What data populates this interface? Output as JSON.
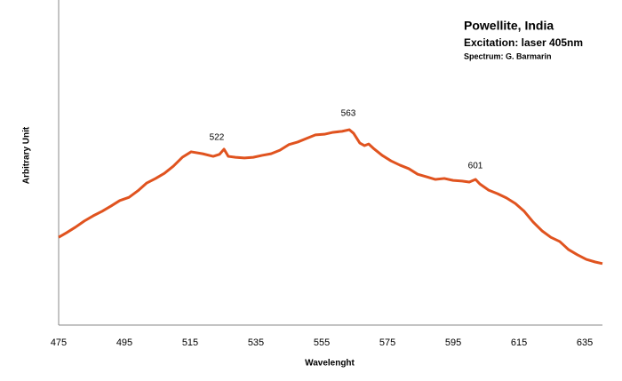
{
  "chart_data": {
    "type": "line",
    "title": "Powellite, India",
    "subtitle": "Excitation: laser 405nm",
    "credit": "Spectrum: G. Barmarin",
    "xlabel": "Wavelenght",
    "ylabel": "Arbitrary Unit",
    "annotations": [
      "522",
      "563",
      "601"
    ],
    "xlim": [
      475,
      640.4
    ],
    "ylim": [
      0,
      100
    ],
    "xticks": [
      475,
      495,
      515,
      535,
      555,
      575,
      595,
      615,
      635
    ],
    "x": [
      475,
      477.4,
      480.1,
      482.8,
      485.5,
      488.2,
      490.9,
      493.6,
      496.4,
      499.1,
      501.8,
      504.5,
      507.2,
      509.9,
      512.6,
      515.3,
      518.8,
      522.0,
      523.9,
      525.3,
      526.6,
      528.8,
      531.5,
      534.2,
      536.9,
      539.6,
      542.3,
      545.0,
      547.7,
      550.4,
      553.1,
      555.8,
      558.5,
      561.2,
      563.4,
      564.7,
      566.6,
      568.0,
      569.3,
      570.7,
      573.4,
      576.1,
      578.8,
      581.5,
      584.2,
      586.9,
      589.6,
      592.3,
      595.0,
      597.7,
      599.9,
      601.8,
      603.1,
      605.8,
      608.5,
      611.2,
      613.9,
      616.6,
      619.3,
      622.0,
      624.7,
      627.4,
      630.1,
      632.8,
      635.5,
      638.2,
      640.4
    ],
    "series": [
      {
        "name": "Powellite",
        "color": "#e0531f",
        "values": [
          27.0,
          28.4,
          30.1,
          32.0,
          33.6,
          35.0,
          36.6,
          38.3,
          39.3,
          41.3,
          43.7,
          45.1,
          46.7,
          48.9,
          51.6,
          53.3,
          52.7,
          51.9,
          52.5,
          54.1,
          51.9,
          51.6,
          51.4,
          51.6,
          52.2,
          52.7,
          53.8,
          55.5,
          56.3,
          57.4,
          58.5,
          58.7,
          59.3,
          59.6,
          60.1,
          59.0,
          56.0,
          55.2,
          55.7,
          54.4,
          52.2,
          50.5,
          49.2,
          48.1,
          46.4,
          45.6,
          44.8,
          45.1,
          44.5,
          44.3,
          44.0,
          44.8,
          43.4,
          41.5,
          40.4,
          39.1,
          37.4,
          35.0,
          31.7,
          29.0,
          27.0,
          25.7,
          23.2,
          21.6,
          20.2,
          19.4,
          18.9
        ]
      }
    ]
  }
}
